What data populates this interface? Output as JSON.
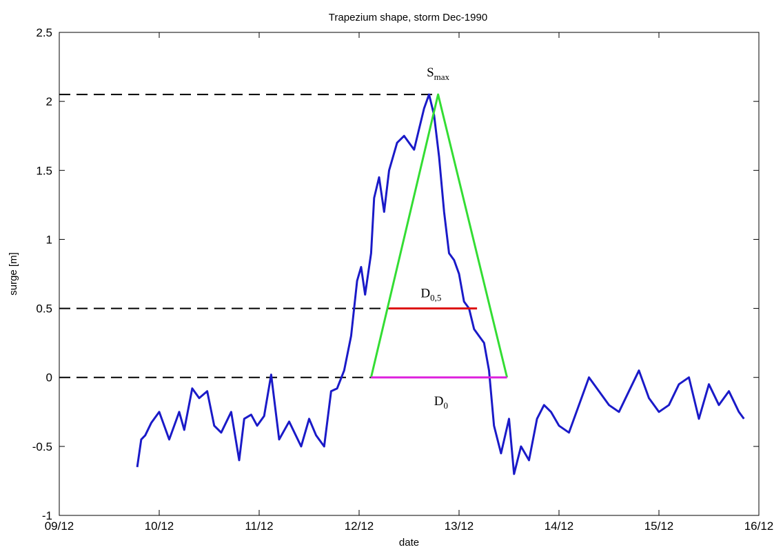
{
  "chart_data": {
    "type": "line",
    "title": "Trapezium shape, storm Dec-1990",
    "xlabel": "date",
    "ylabel": "surge [m]",
    "xlim": [
      0,
      7
    ],
    "ylim": [
      -1,
      2.5
    ],
    "x_ticks": [
      {
        "x": 0,
        "label": "09/12"
      },
      {
        "x": 1,
        "label": "10/12"
      },
      {
        "x": 2,
        "label": "11/12"
      },
      {
        "x": 3,
        "label": "12/12"
      },
      {
        "x": 4,
        "label": "13/12"
      },
      {
        "x": 5,
        "label": "14/12"
      },
      {
        "x": 6,
        "label": "15/12"
      },
      {
        "x": 7,
        "label": "16/12"
      }
    ],
    "y_ticks": [
      {
        "y": -1,
        "label": "-1"
      },
      {
        "y": -0.5,
        "label": "-0.5"
      },
      {
        "y": 0,
        "label": "0"
      },
      {
        "y": 0.5,
        "label": "0.5"
      },
      {
        "y": 1,
        "label": "1"
      },
      {
        "y": 1.5,
        "label": "1.5"
      },
      {
        "y": 2,
        "label": "2"
      },
      {
        "y": 2.5,
        "label": "2.5"
      }
    ],
    "grid": false,
    "series": [
      {
        "color": "#1a1ac8",
        "x": [
          0.78,
          0.82,
          0.86,
          0.92,
          1.0,
          1.1,
          1.2,
          1.25,
          1.33,
          1.4,
          1.48,
          1.55,
          1.62,
          1.72,
          1.8,
          1.85,
          1.92,
          1.98,
          2.05,
          2.12,
          2.2,
          2.3,
          2.42,
          2.5,
          2.57,
          2.65,
          2.72,
          2.78,
          2.85,
          2.92,
          2.98,
          3.02,
          3.06,
          3.12,
          3.15,
          3.2,
          3.25,
          3.3,
          3.38,
          3.45,
          3.5,
          3.55,
          3.6,
          3.65,
          3.7,
          3.75,
          3.8,
          3.85,
          3.9,
          3.95,
          4.0,
          4.05,
          4.1,
          4.15,
          4.2,
          4.25,
          4.3,
          4.35,
          4.42,
          4.5,
          4.55,
          4.62,
          4.7,
          4.78,
          4.85,
          4.92,
          5.0,
          5.1,
          5.2,
          5.3,
          5.4,
          5.5,
          5.6,
          5.7,
          5.8,
          5.9,
          6.0,
          6.1,
          6.2,
          6.3,
          6.4,
          6.5,
          6.6,
          6.7,
          6.8,
          6.85
        ],
        "y": [
          -0.65,
          -0.45,
          -0.42,
          -0.33,
          -0.25,
          -0.45,
          -0.25,
          -0.38,
          -0.08,
          -0.15,
          -0.1,
          -0.35,
          -0.4,
          -0.25,
          -0.6,
          -0.3,
          -0.27,
          -0.35,
          -0.28,
          0.02,
          -0.45,
          -0.32,
          -0.5,
          -0.3,
          -0.42,
          -0.5,
          -0.1,
          -0.08,
          0.05,
          0.3,
          0.7,
          0.8,
          0.6,
          0.9,
          1.3,
          1.45,
          1.2,
          1.5,
          1.7,
          1.75,
          1.7,
          1.65,
          1.8,
          1.95,
          2.05,
          1.9,
          1.6,
          1.2,
          0.9,
          0.85,
          0.75,
          0.55,
          0.5,
          0.35,
          0.3,
          0.25,
          0.05,
          -0.35,
          -0.55,
          -0.3,
          -0.7,
          -0.5,
          -0.6,
          -0.3,
          -0.2,
          -0.25,
          -0.35,
          -0.4,
          -0.2,
          0.0,
          -0.1,
          -0.2,
          -0.25,
          -0.1,
          0.05,
          -0.15,
          -0.25,
          -0.2,
          -0.05,
          0.0,
          -0.3,
          -0.05,
          -0.2,
          -0.1,
          -0.25,
          -0.3
        ]
      },
      {
        "color": "#33dd33",
        "x": [
          3.12,
          3.79,
          4.48
        ],
        "y": [
          0.0,
          2.05,
          0.0
        ]
      }
    ],
    "reference_lines": [
      {
        "y": 2.05,
        "x_end": 3.79,
        "style": "dashed",
        "color": "#000000"
      },
      {
        "y": 0.5,
        "x_end": 3.3,
        "style": "dashed",
        "color": "#000000"
      },
      {
        "y": 0.0,
        "x_end": 3.12,
        "style": "dashed",
        "color": "#000000"
      }
    ],
    "segments": [
      {
        "x": [
          3.3,
          4.18
        ],
        "y": [
          0.5,
          0.5
        ],
        "color": "#dd1111"
      },
      {
        "x": [
          3.12,
          4.48
        ],
        "y": [
          0.0,
          0.0
        ],
        "color": "#dd22dd"
      }
    ],
    "annotations": [
      {
        "main": "S",
        "sub": "max",
        "x": 3.79,
        "y": 2.18
      },
      {
        "main": "D",
        "sub": "0,5",
        "x": 3.72,
        "y": 0.58
      },
      {
        "main": "D",
        "sub": "0",
        "x": 3.82,
        "y": -0.2
      }
    ]
  }
}
